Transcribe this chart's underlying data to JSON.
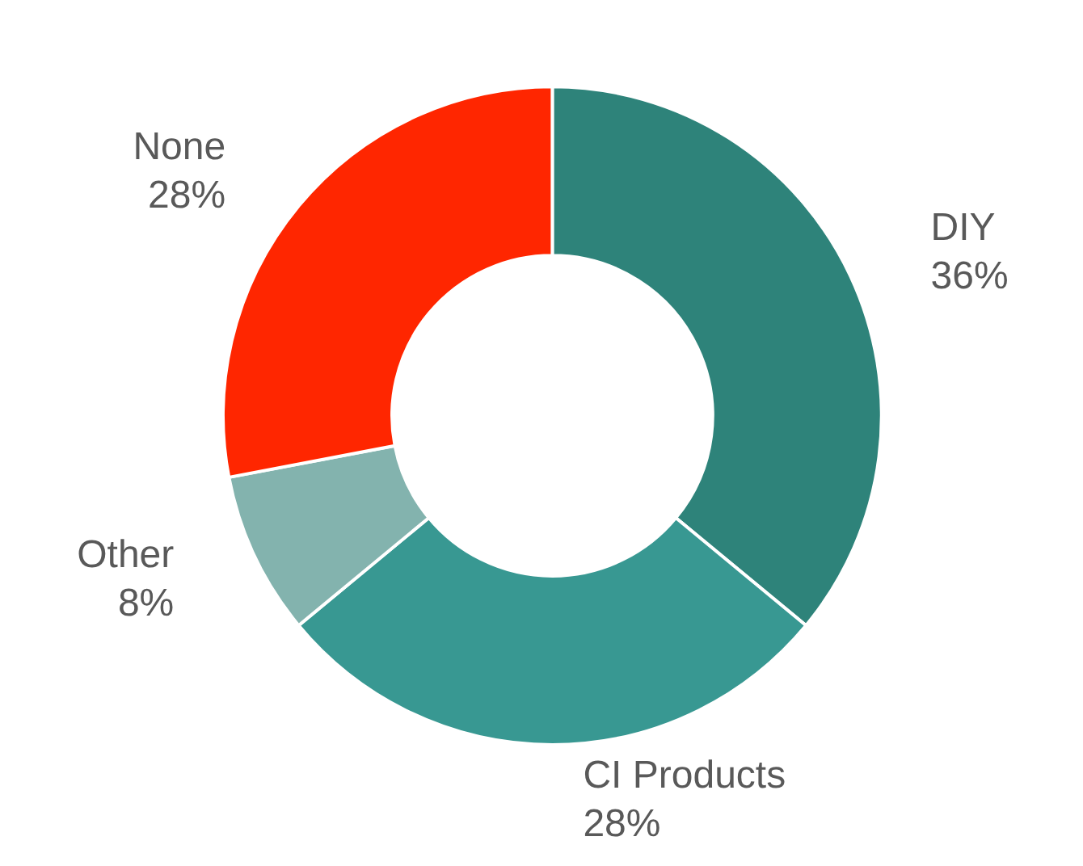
{
  "chart_data": {
    "type": "donut",
    "categories": [
      "DIY",
      "CI Products",
      "Other",
      "None"
    ],
    "values": [
      36,
      28,
      8,
      28
    ],
    "colors": [
      "#2e837a",
      "#389892",
      "#83b3ae",
      "#ff2600"
    ],
    "value_labels": [
      "36%",
      "28%",
      "8%",
      "28%"
    ],
    "legend": false
  }
}
